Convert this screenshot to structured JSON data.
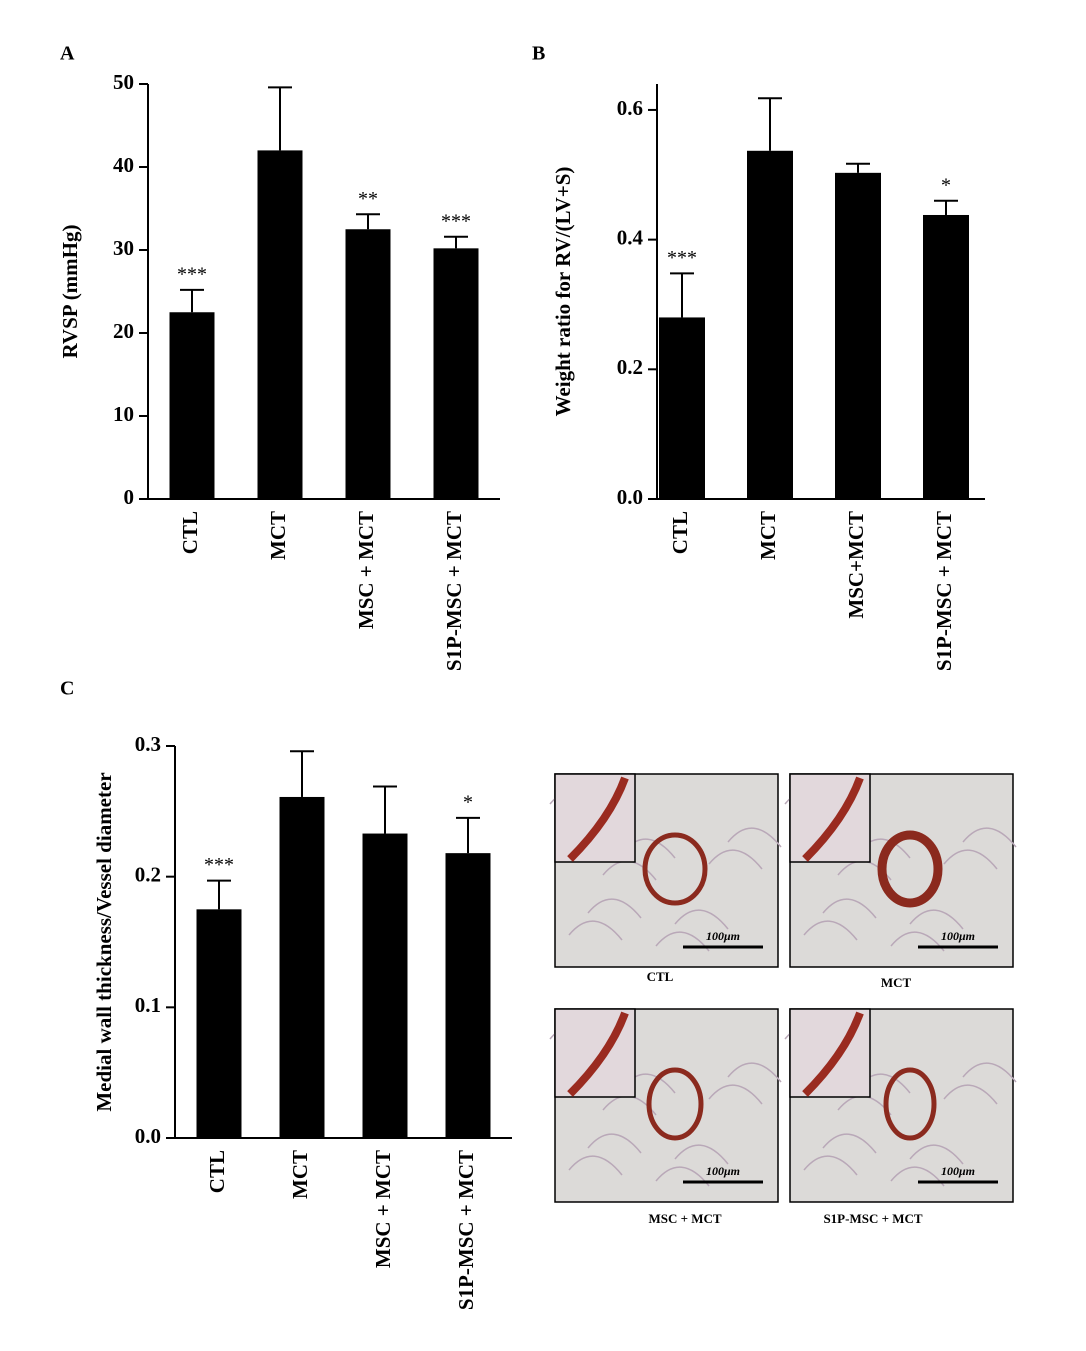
{
  "chart_data": [
    {
      "type": "bar",
      "panel": "A",
      "ylabel": "RVSP (mmHg)",
      "categories": [
        "CTL",
        "MCT",
        "MSC + MCT",
        "S1P-MSC + MCT"
      ],
      "values": [
        22.5,
        42.0,
        32.5,
        30.2
      ],
      "errors": [
        2.7,
        7.6,
        1.8,
        1.4
      ],
      "significance": [
        "***",
        null,
        "**",
        "***"
      ],
      "color": "#000000",
      "ylim": [
        0,
        50
      ],
      "yticks": [
        0,
        10,
        20,
        30,
        40,
        50
      ]
    },
    {
      "type": "bar",
      "panel": "B",
      "ylabel": "Weight ratio for RV/(LV+S)",
      "categories": [
        "CTL",
        "MCT",
        "MSC+MCT",
        "S1P-MSC + MCT"
      ],
      "values": [
        0.28,
        0.537,
        0.503,
        0.438
      ],
      "errors": [
        0.068,
        0.081,
        0.014,
        0.022
      ],
      "significance": [
        "***",
        null,
        null,
        "*"
      ],
      "color": "#000000",
      "ylim": [
        0,
        0.64
      ],
      "yticks": [
        {
          "value": 0,
          "label": "0.0"
        },
        0.2,
        0.4,
        0.6
      ]
    },
    {
      "type": "bar",
      "panel": "C",
      "ylabel": "Medial wall thickness/Vessel diameter",
      "categories": [
        "CTL",
        "MCT",
        "MSC + MCT",
        "S1P-MSC + MCT"
      ],
      "values": [
        0.175,
        0.261,
        0.233,
        0.218
      ],
      "errors": [
        0.022,
        0.035,
        0.036,
        0.027
      ],
      "significance": [
        "***",
        null,
        null,
        "*"
      ],
      "color": "#000000",
      "ylim": [
        0,
        0.3
      ],
      "yticks": [
        {
          "value": 0,
          "label": "0.0"
        },
        0.1,
        0.2,
        0.3
      ]
    }
  ],
  "images": [
    {
      "label": "CTL",
      "scale": "100μm"
    },
    {
      "label": "MCT",
      "scale": "100μm"
    },
    {
      "label": "MSC + MCT",
      "scale": "100μm"
    },
    {
      "label": "S1P-MSC + MCT",
      "scale": "100μm"
    }
  ]
}
